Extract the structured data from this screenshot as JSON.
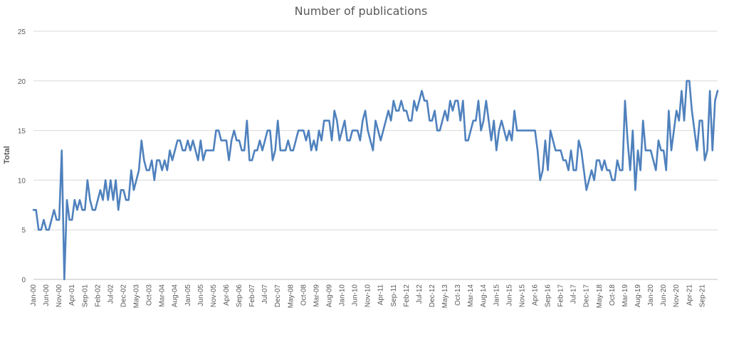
{
  "chart_data": {
    "type": "line",
    "title": "Number of publications",
    "xlabel": "",
    "ylabel": "Total",
    "ylim": [
      0,
      25
    ],
    "yticks": [
      "0",
      "5",
      "10",
      "15",
      "20",
      "25"
    ],
    "grid": "horizontal",
    "legend": "none",
    "colors": {
      "line": "#4f81bd",
      "grid": "#d9d9d9",
      "axis": "#bfbfbf",
      "text": "#595959"
    },
    "x_start": "Jan-00",
    "x_end": "Dec-21",
    "xtick_labels": [
      "Jan-00",
      "Jun-00",
      "Nov-00",
      "Apr-01",
      "Sep-01",
      "Feb-02",
      "Jul-02",
      "Dec-02",
      "May-03",
      "Oct-03",
      "Mar-04",
      "Aug-04",
      "Jan-05",
      "Jun-05",
      "Nov-05",
      "Apr-06",
      "Sep-06",
      "Feb-07",
      "Jul-07",
      "Dec-07",
      "May-08",
      "Oct-08",
      "Mar-09",
      "Aug-09",
      "Jan-10",
      "Jun-10",
      "Nov-10",
      "Apr-11",
      "Sep-11",
      "Feb-12",
      "Jul-12",
      "Dec-12",
      "May-13",
      "Oct-13",
      "Mar-14",
      "Aug-14",
      "Jan-15",
      "Jun-15",
      "Nov-15",
      "Apr-16",
      "Sep-16",
      "Feb-17",
      "Jul-17",
      "Dec-17",
      "May-18",
      "Oct-18",
      "Mar-19",
      "Aug-19",
      "Jan-20",
      "Jun-20",
      "Nov-20",
      "Apr-21",
      "Sep-21"
    ],
    "values": [
      7,
      7,
      5,
      5,
      6,
      5,
      5,
      6,
      7,
      6,
      6,
      13,
      0,
      8,
      6,
      6,
      8,
      7,
      8,
      7,
      7,
      10,
      8,
      7,
      7,
      8,
      9,
      8,
      10,
      8,
      10,
      8,
      10,
      7,
      9,
      9,
      8,
      8,
      11,
      9,
      10,
      11,
      14,
      12,
      11,
      11,
      12,
      10,
      12,
      12,
      11,
      12,
      11,
      13,
      12,
      13,
      14,
      14,
      13,
      13,
      14,
      13,
      14,
      13,
      12,
      14,
      12,
      13,
      13,
      13,
      13,
      15,
      15,
      14,
      14,
      14,
      12,
      14,
      15,
      14,
      14,
      13,
      13,
      16,
      12,
      12,
      13,
      13,
      14,
      13,
      14,
      15,
      15,
      12,
      13,
      16,
      13,
      13,
      13,
      14,
      13,
      13,
      14,
      15,
      15,
      15,
      14,
      15,
      13,
      14,
      13,
      15,
      14,
      16,
      16,
      16,
      14,
      17,
      16,
      14,
      15,
      16,
      14,
      14,
      15,
      15,
      15,
      14,
      16,
      17,
      15,
      14,
      13,
      16,
      15,
      14,
      15,
      16,
      17,
      16,
      18,
      17,
      17,
      18,
      17,
      17,
      16,
      16,
      18,
      17,
      18,
      19,
      18,
      18,
      16,
      16,
      17,
      15,
      15,
      16,
      17,
      16,
      18,
      17,
      18,
      18,
      16,
      18,
      14,
      14,
      15,
      16,
      16,
      18,
      15,
      16,
      18,
      16,
      14,
      16,
      13,
      15,
      16,
      15,
      14,
      15,
      14,
      17,
      15,
      15,
      15,
      15,
      15,
      15,
      15,
      15,
      13,
      10,
      11,
      14,
      11,
      15,
      14,
      13,
      13,
      13,
      12,
      12,
      11,
      13,
      11,
      11,
      14,
      13,
      11,
      9,
      10,
      11,
      10,
      12,
      12,
      11,
      12,
      11,
      11,
      10,
      10,
      12,
      11,
      11,
      18,
      14,
      11,
      15,
      9,
      13,
      11,
      16,
      13,
      13,
      13,
      12,
      11,
      14,
      13,
      13,
      11,
      17,
      13,
      15,
      17,
      16,
      19,
      16,
      20,
      20,
      17,
      15,
      13,
      16,
      16,
      12,
      13,
      19,
      13,
      18,
      19
    ]
  }
}
